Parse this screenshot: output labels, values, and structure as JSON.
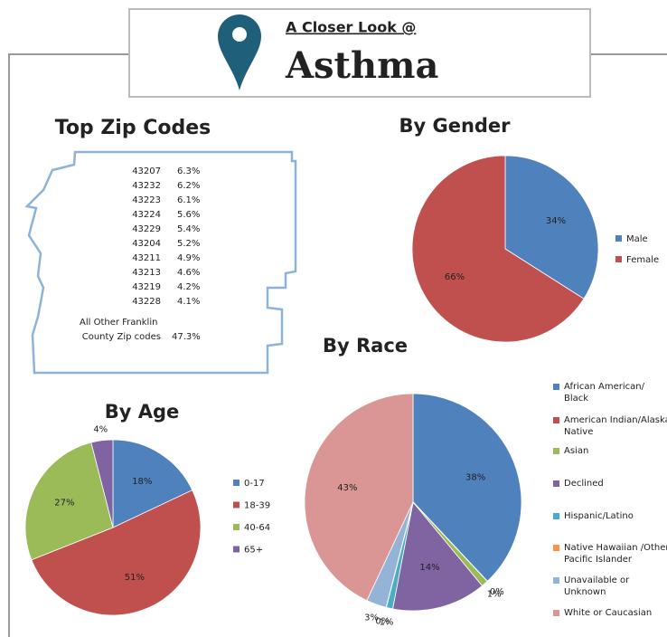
{
  "header": {
    "subtitle": "A Closer Look @",
    "title": "Asthma"
  },
  "zip_codes": {
    "title": "Top Zip Codes",
    "rows": [
      [
        "43207",
        "6.3%"
      ],
      [
        "43232",
        "6.2%"
      ],
      [
        "43223",
        "6.1%"
      ],
      [
        "43224",
        "5.6%"
      ],
      [
        "43229",
        "5.4%"
      ],
      [
        "43204",
        "5.2%"
      ],
      [
        "43211",
        "4.9%"
      ],
      [
        "43213",
        "4.6%"
      ],
      [
        "43219",
        "4.2%"
      ],
      [
        "43228",
        "4.1%"
      ]
    ],
    "other_label": [
      "All Other Franklin",
      "County Zip codes"
    ],
    "other_value": "47.3%"
  },
  "chart_data": [
    {
      "type": "pie",
      "title": "By Gender",
      "categories": [
        "Male",
        "Female"
      ],
      "values": [
        34,
        66
      ],
      "value_labels": [
        "34%",
        "66%"
      ],
      "colors": [
        "#4f81bd",
        "#c0504d"
      ]
    },
    {
      "type": "pie",
      "title": "By Race",
      "categories": [
        "African American/ Black",
        "American Indian/Alaska Native",
        "Asian",
        "Declined",
        "Hispanic/Latino",
        "Native Hawaiian /Other Pacific Islander",
        "Unavailable or Unknown",
        "White or Caucasian"
      ],
      "values": [
        38,
        0,
        1,
        14,
        1,
        0,
        3,
        43
      ],
      "value_labels": [
        "38%",
        "0%",
        "1%",
        "14%",
        "1%",
        "0%",
        "3%",
        "43%"
      ],
      "colors": [
        "#4f81bd",
        "#c0504d",
        "#9bbb59",
        "#8064a2",
        "#4bacc6",
        "#f79646",
        "#95b3d7",
        "#d99694"
      ]
    },
    {
      "type": "pie",
      "title": "By Age",
      "categories": [
        "0-17",
        "18-39",
        "40-64",
        "65+"
      ],
      "values": [
        18,
        51,
        27,
        4
      ],
      "value_labels": [
        "18%",
        "51%",
        "27%",
        "4%"
      ],
      "colors": [
        "#4f81bd",
        "#c0504d",
        "#9bbb59",
        "#8064a2"
      ]
    }
  ]
}
